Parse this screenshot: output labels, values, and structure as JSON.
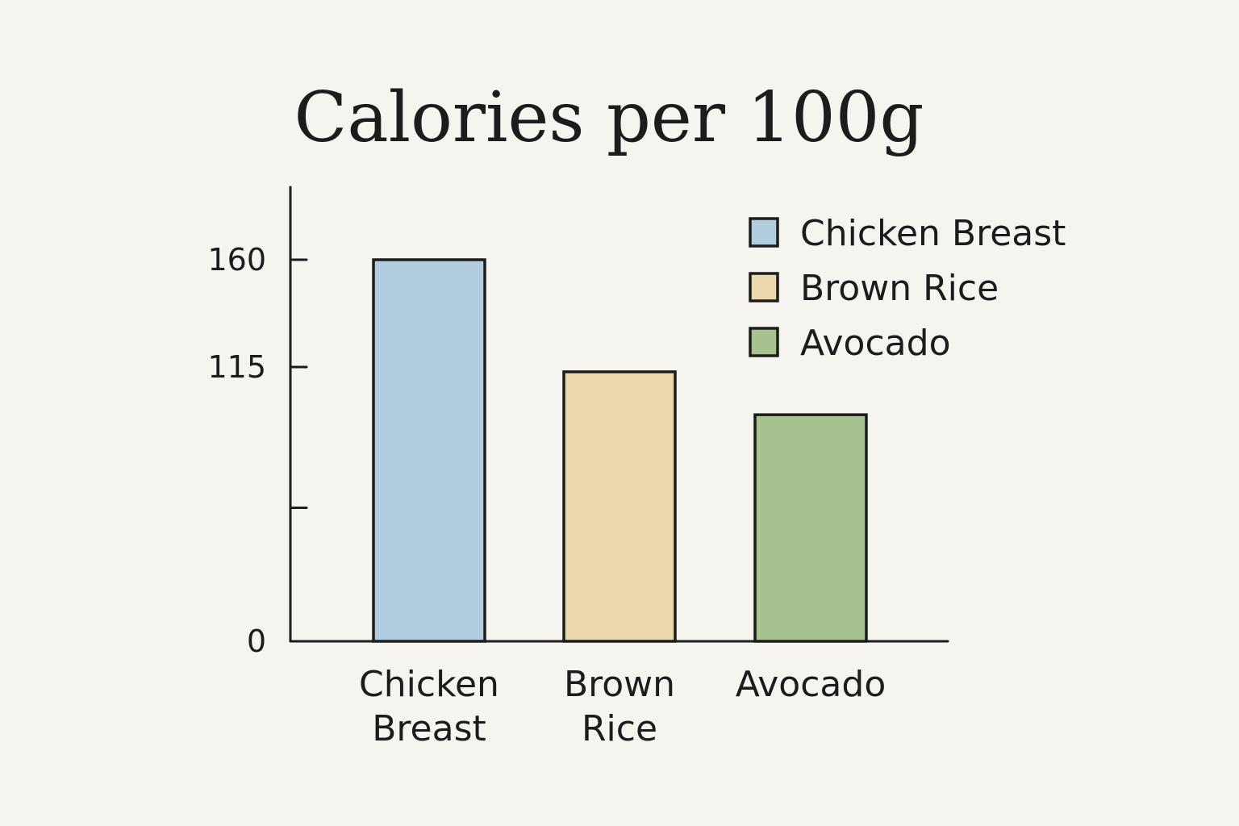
{
  "chart_data": {
    "type": "bar",
    "title": "Calories per 100g",
    "xlabel": "",
    "ylabel": "",
    "categories": [
      [
        "Chicken",
        "Breast"
      ],
      [
        "Brown",
        "Rice"
      ],
      [
        "Avocado"
      ]
    ],
    "values": [
      160,
      113,
      95
    ],
    "colors": [
      "#b3cde0",
      "#ecd8ad",
      "#a6c28e"
    ],
    "y_ticks": [
      {
        "value": 0,
        "label": "0"
      },
      {
        "value": 56,
        "label": ""
      },
      {
        "value": 115,
        "label": "115"
      },
      {
        "value": 160,
        "label": "160"
      }
    ],
    "ylim": [
      0,
      190
    ],
    "grid": false,
    "legend": {
      "placement": "top-right",
      "entries": [
        "Chicken Breast",
        "Brown Rice",
        "Avocado"
      ]
    }
  }
}
